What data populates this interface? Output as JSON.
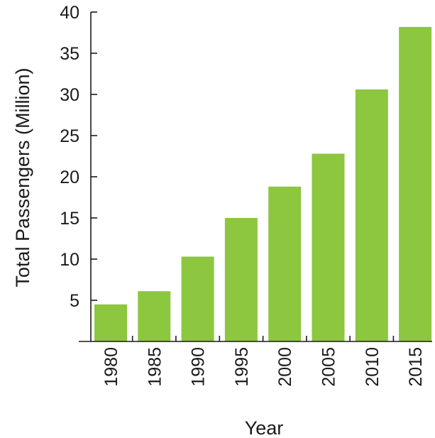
{
  "chart_data": {
    "type": "bar",
    "title": "",
    "xlabel": "Year",
    "ylabel": "Total Passengers (Million)",
    "categories": [
      "1980",
      "1985",
      "1990",
      "1995",
      "2000",
      "2005",
      "2010",
      "2015"
    ],
    "values": [
      4.5,
      6.1,
      10.3,
      15.0,
      18.8,
      22.8,
      30.6,
      38.2
    ],
    "ylim": [
      0,
      40
    ],
    "yticks": [
      "5",
      "10",
      "15",
      "20",
      "25",
      "30",
      "35",
      "40"
    ],
    "grid": false,
    "legend": "none",
    "bar_color": "#8dc63f",
    "axis_color": "#1a1a1a"
  }
}
